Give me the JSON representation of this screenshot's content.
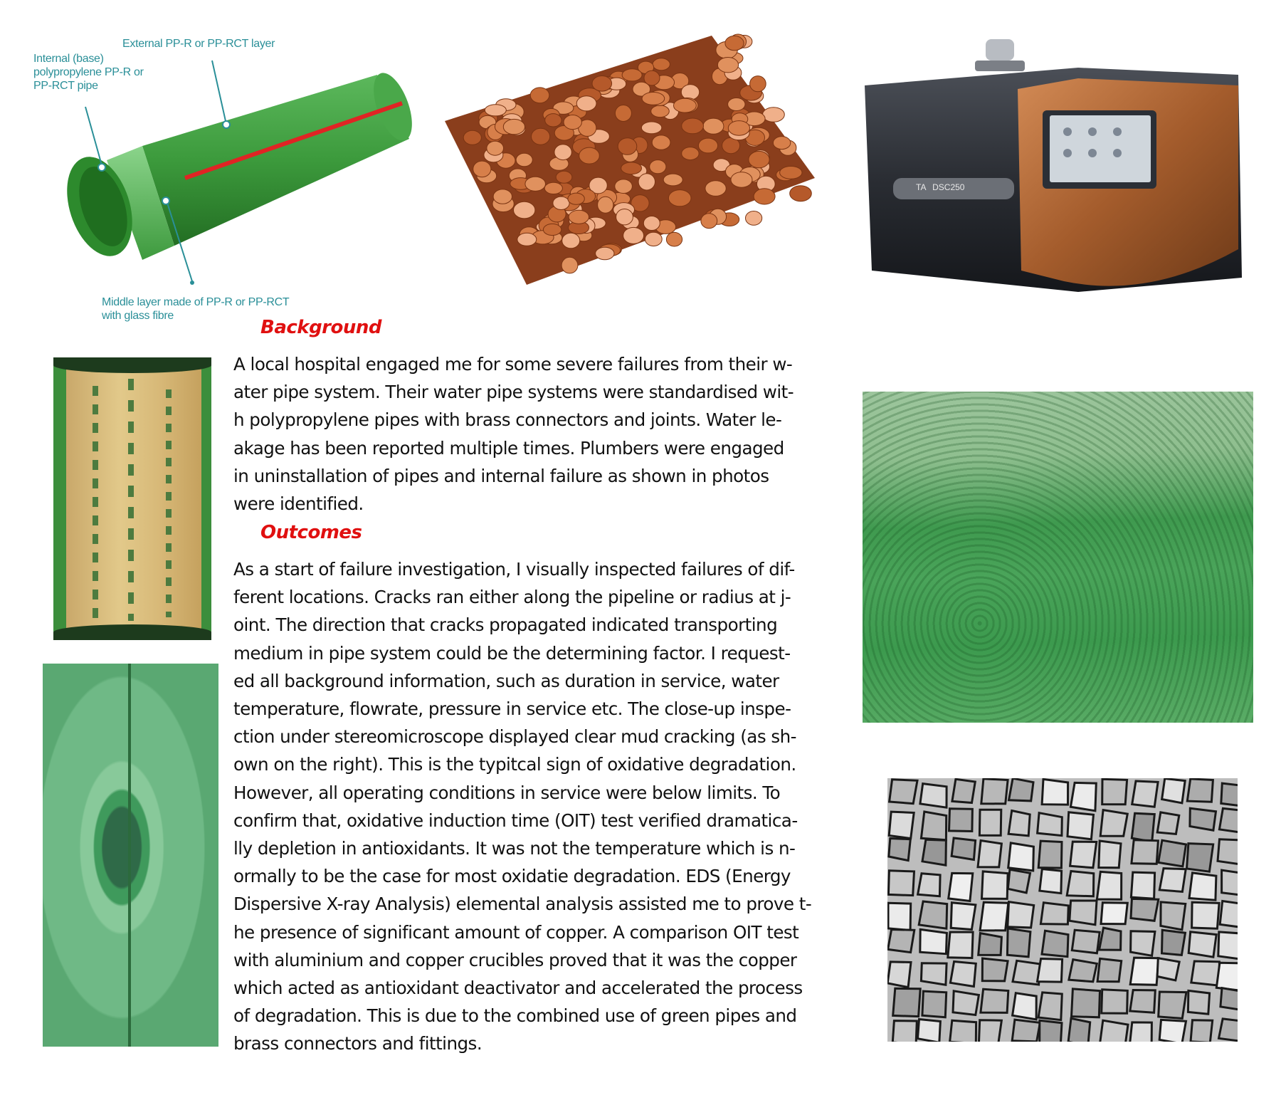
{
  "diagram": {
    "label_external": "External PP-R or PP-RCT layer",
    "label_internal": [
      "Internal (base)",
      "polypropylene PP-R or",
      "PP-RCT pipe"
    ],
    "label_middle": [
      "Middle layer made of PP-R or PP-RCT",
      "with glass fibre"
    ]
  },
  "dsc": {
    "brand": "TA",
    "model": "DSC250"
  },
  "background": {
    "heading": "Background",
    "lines": [
      "A local hospital engaged me for some severe failures from their w-",
      "ater pipe system. Their water pipe systems were standardised wit-",
      "h polypropylene pipes with brass connectors and joints. Water le-",
      "akage has been reported multiple times. Plumbers were engaged",
      "in uninstallation of pipes and internal failure as shown in photos",
      "were identified."
    ]
  },
  "outcomes": {
    "heading": "Outcomes",
    "lines": [
      "As a start of failure investigation, I visually inspected failures of dif-",
      "ferent locations. Cracks ran either along the pipeline or radius at j-",
      "oint. The direction that cracks propagated indicated transporting",
      "medium in pipe system could be the determining factor. I request-",
      "ed all background information, such as duration in service, water",
      "temperature, flowrate, pressure in service etc. The close-up inspe-",
      "ction under stereomicroscope displayed clear mud cracking (as sh-",
      "own on the right). This is the typitcal sign of oxidative degradation.",
      "However, all operating conditions in service were below limits. To",
      "confirm that, oxidative induction time (OIT) test verified dramatica-",
      "lly depletion in antioxidants. It was not the temperature which is n-",
      "ormally to be the case for most oxidatie degradation. EDS (Energy",
      "Dispersive X-ray Analysis) elemental analysis assisted me to prove t-",
      "he presence of significant amount of copper. A comparison OIT test",
      "with aluminium and copper crucibles proved that it was the copper",
      "which acted as antioxidant deactivator and accelerated the process",
      "of degradation. This is due to the combined use of green pipes and",
      "brass connectors and fittings."
    ]
  }
}
